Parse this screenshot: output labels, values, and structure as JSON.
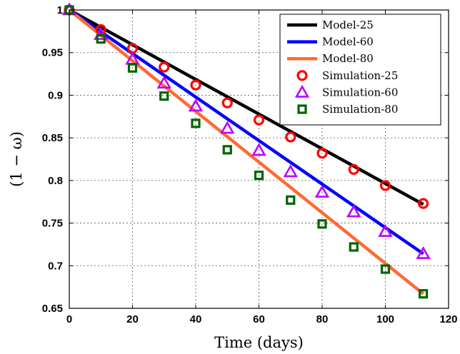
{
  "chart_data": {
    "type": "line",
    "xlabel": "Time (days)",
    "ylabel": "(1 − ω)",
    "xlim": [
      0,
      120
    ],
    "ylim": [
      0.65,
      1.0
    ],
    "xticks": [
      0,
      20,
      40,
      60,
      80,
      100,
      120
    ],
    "xtick_labels": [
      "0",
      "20",
      "40",
      "60",
      "80",
      "100",
      "120"
    ],
    "yticks": [
      0.65,
      0.7,
      0.75,
      0.8,
      0.85,
      0.9,
      0.95,
      1.0
    ],
    "ytick_labels": [
      "0.65",
      "0.7",
      "0.75",
      "0.8",
      "0.85",
      "0.9",
      "0.95",
      "1"
    ],
    "grid": true,
    "legend_position": "top-right",
    "series": [
      {
        "name": "Model-25",
        "kind": "line",
        "color": "#000000",
        "x": [
          0,
          112
        ],
        "y": [
          1.0,
          0.772
        ]
      },
      {
        "name": "Model-60",
        "kind": "line",
        "color": "#0000ff",
        "x": [
          0,
          112
        ],
        "y": [
          1.0,
          0.714
        ]
      },
      {
        "name": "Model-80",
        "kind": "line",
        "color": "#ff6a33",
        "x": [
          0,
          112
        ],
        "y": [
          1.0,
          0.667
        ]
      },
      {
        "name": "Simulation-25",
        "kind": "marker",
        "marker": "circle",
        "color": "#ff0000",
        "x": [
          0,
          10,
          20,
          30,
          40,
          50,
          60,
          70,
          80,
          90,
          100,
          112
        ],
        "y": [
          1.0,
          0.977,
          0.955,
          0.933,
          0.912,
          0.891,
          0.871,
          0.851,
          0.832,
          0.813,
          0.794,
          0.773
        ]
      },
      {
        "name": "Simulation-60",
        "kind": "marker",
        "marker": "triangle",
        "color": "#bf00ff",
        "x": [
          0,
          10,
          20,
          30,
          40,
          50,
          60,
          70,
          80,
          90,
          100,
          112
        ],
        "y": [
          1.0,
          0.971,
          0.942,
          0.914,
          0.887,
          0.861,
          0.835,
          0.81,
          0.786,
          0.763,
          0.74,
          0.714
        ]
      },
      {
        "name": "Simulation-80",
        "kind": "marker",
        "marker": "square",
        "color": "#006400",
        "x": [
          0,
          10,
          20,
          30,
          40,
          50,
          60,
          70,
          80,
          90,
          100,
          112
        ],
        "y": [
          1.0,
          0.966,
          0.932,
          0.899,
          0.867,
          0.836,
          0.806,
          0.777,
          0.749,
          0.722,
          0.696,
          0.667
        ]
      }
    ]
  }
}
